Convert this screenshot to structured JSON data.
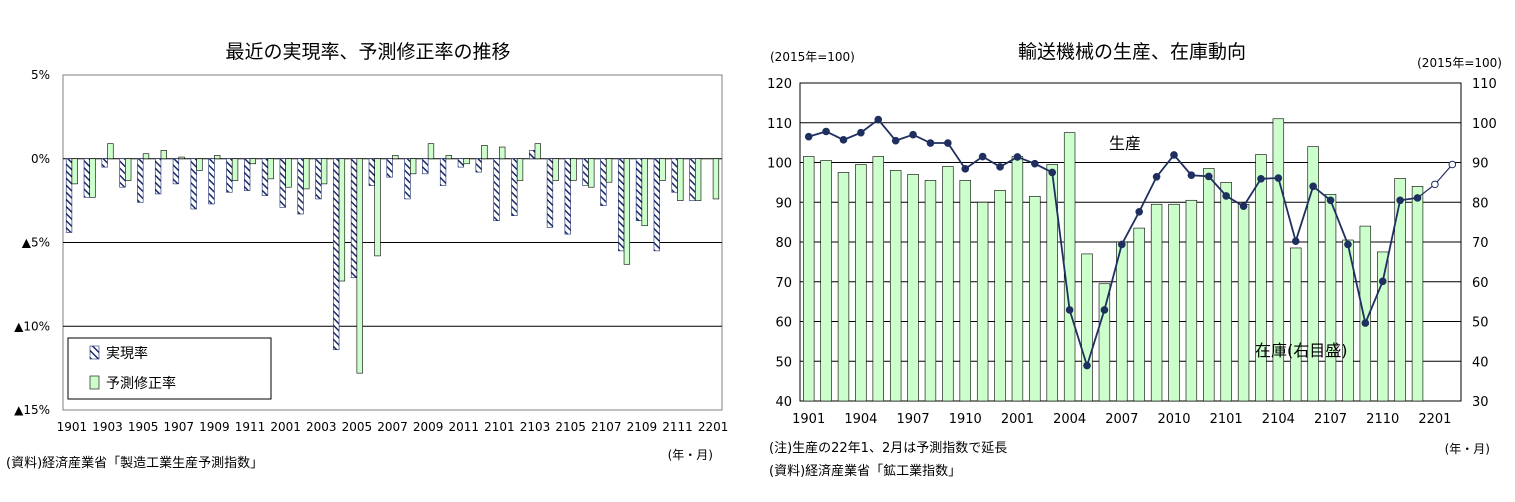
{
  "chart_data": [
    {
      "type": "bar",
      "title": "最近の実現率、予測修正率の推移",
      "source": "(資料)経済産業省「製造工業生産予測指数」",
      "unit_note": "(年・月)",
      "ylim": [
        -15,
        5
      ],
      "yticks": [
        {
          "value": 5,
          "label": "5%"
        },
        {
          "value": 0,
          "label": "0%"
        },
        {
          "value": -5,
          "label": "▲5%"
        },
        {
          "value": -10,
          "label": "▲10%"
        },
        {
          "value": -15,
          "label": "▲15%"
        }
      ],
      "grid": true,
      "legend_position": "bottom-left",
      "categories": [
        "1901",
        "1902",
        "1903",
        "1904",
        "1905",
        "1906",
        "1907",
        "1908",
        "1909",
        "1910",
        "1911",
        "1912",
        "2001",
        "2002",
        "2003",
        "2004",
        "2005",
        "2006",
        "2007",
        "2008",
        "2009",
        "2010",
        "2011",
        "2012",
        "2101",
        "2102",
        "2103",
        "2104",
        "2105",
        "2106",
        "2107",
        "2108",
        "2109",
        "2110",
        "2111",
        "2112",
        "2201"
      ],
      "xtick_labels": [
        "1901",
        "1903",
        "1905",
        "1907",
        "1909",
        "1911",
        "2001",
        "2003",
        "2005",
        "2007",
        "2009",
        "2011",
        "2101",
        "2103",
        "2105",
        "2107",
        "2109",
        "2111",
        "2201"
      ],
      "series": [
        {
          "name": "実現率",
          "pattern": "hatch",
          "values": [
            -4.4,
            -2.3,
            -0.5,
            -1.7,
            -2.6,
            -2.1,
            -1.5,
            -3.0,
            -2.7,
            -2.0,
            -1.9,
            -2.2,
            -2.9,
            -3.3,
            -2.4,
            -11.4,
            -7.1,
            -1.6,
            -1.1,
            -2.4,
            -0.9,
            -1.6,
            -0.5,
            -0.8,
            -3.7,
            -3.4,
            0.5,
            -4.1,
            -4.5,
            -1.6,
            -2.8,
            -5.5,
            -3.7,
            -5.5,
            -2.0,
            -2.5,
            null
          ]
        },
        {
          "name": "予測修正率",
          "color": "#ccffcc",
          "values": [
            -1.5,
            -2.3,
            0.9,
            -1.3,
            0.3,
            0.5,
            0.1,
            -0.7,
            0.2,
            -1.3,
            -0.3,
            -1.2,
            -1.7,
            -1.8,
            -1.5,
            -7.3,
            -12.8,
            -5.8,
            0.2,
            -0.9,
            0.9,
            0.2,
            -0.3,
            0.8,
            0.7,
            -1.3,
            0.9,
            -1.3,
            -1.3,
            -1.7,
            -1.4,
            -6.3,
            -4.0,
            -1.3,
            -2.5,
            -2.5,
            -2.4
          ]
        }
      ]
    },
    {
      "type": "bar+line",
      "title": "輸送機械の生産、在庫動向",
      "left_unit": "(2015年=100)",
      "right_unit": "(2015年=100)",
      "note": "(注)生産の22年1、2月は予測指数で延長",
      "source": "(資料)経済産業省「鉱工業指数」",
      "unit_note": "(年・月)",
      "ylim_left": [
        40,
        120
      ],
      "ylim_right": [
        30,
        110
      ],
      "yticks_left": [
        "40",
        "50",
        "60",
        "70",
        "80",
        "90",
        "100",
        "110",
        "120"
      ],
      "yticks_right": [
        "30",
        "40",
        "50",
        "60",
        "70",
        "80",
        "90",
        "100",
        "110"
      ],
      "grid": true,
      "categories": [
        "1901",
        "1902",
        "1903",
        "1904",
        "1905",
        "1906",
        "1907",
        "1908",
        "1909",
        "1910",
        "1911",
        "1912",
        "2001",
        "2002",
        "2003",
        "2004",
        "2005",
        "2006",
        "2007",
        "2008",
        "2009",
        "2010",
        "2011",
        "2012",
        "2101",
        "2102",
        "2103",
        "2104",
        "2105",
        "2106",
        "2107",
        "2108",
        "2109",
        "2110",
        "2111",
        "2112",
        "2201",
        "2202"
      ],
      "xtick_labels": [
        "1901",
        "1904",
        "1907",
        "1910",
        "2001",
        "2004",
        "2007",
        "2010",
        "2101",
        "2104",
        "2107",
        "2110",
        "2201"
      ],
      "series": [
        {
          "name": "在庫(右目盛)",
          "type": "bar",
          "axis": "right",
          "color": "#ccffcc",
          "values": [
            91.5,
            90.5,
            87.5,
            89.5,
            91.5,
            88.0,
            87.0,
            85.5,
            89.0,
            85.5,
            80.0,
            83.0,
            91.5,
            81.5,
            89.5,
            97.5,
            67.0,
            59.5,
            70.0,
            73.5,
            79.5,
            79.5,
            80.5,
            88.5,
            85.0,
            79.5,
            92.0,
            101.0,
            68.5,
            94.0,
            82.0,
            70.5,
            74.0,
            67.5,
            86.0,
            84.0,
            null,
            null
          ]
        },
        {
          "name": "生産",
          "type": "line",
          "axis": "left",
          "color": "#1f2f5f",
          "values": [
            106.5,
            107.8,
            105.7,
            107.5,
            110.8,
            105.5,
            107.0,
            104.9,
            104.9,
            98.4,
            101.5,
            98.9,
            101.4,
            99.7,
            97.5,
            62.9,
            48.9,
            62.9,
            79.4,
            87.6,
            96.4,
            101.9,
            96.8,
            96.5,
            91.6,
            89.0,
            95.9,
            96.1,
            80.2,
            94.0,
            90.5,
            79.4,
            59.6,
            70.1,
            90.5,
            91.1,
            94.5,
            99.5
          ],
          "projected_from_index": 36
        }
      ],
      "annotations": [
        "生産",
        "在庫(右目盛)"
      ]
    }
  ]
}
